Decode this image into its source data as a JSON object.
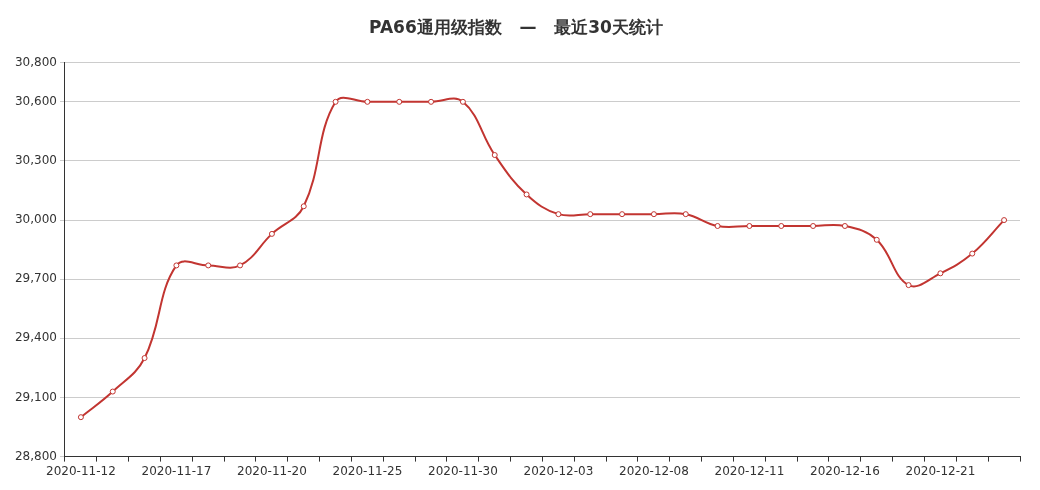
{
  "chart_data": {
    "type": "line",
    "title": "PA66通用级指数   —   最近30天统计",
    "categories": [
      "2020-11-12",
      null,
      null,
      "2020-11-17",
      null,
      null,
      "2020-11-20",
      null,
      null,
      "2020-11-25",
      null,
      null,
      "2020-11-30",
      null,
      null,
      "2020-12-03",
      null,
      null,
      "2020-12-08",
      null,
      null,
      "2020-12-11",
      null,
      null,
      "2020-12-16",
      null,
      null,
      "2020-12-21",
      null,
      null
    ],
    "series": [
      {
        "color": "#c23531",
        "values": [
          29000,
          29130,
          29300,
          29770,
          29770,
          29770,
          29930,
          30070,
          30600,
          30600,
          30600,
          30600,
          30600,
          30330,
          30130,
          30030,
          30030,
          30030,
          30030,
          30030,
          29970,
          29970,
          29970,
          29970,
          29970,
          29900,
          29670,
          29730,
          29830,
          30000
        ]
      }
    ],
    "ylim": [
      28800,
      30800
    ],
    "yticks": [
      {
        "value": 28800,
        "label": "28,800"
      },
      {
        "value": 29100,
        "label": "29,100"
      },
      {
        "value": 29400,
        "label": "29,400"
      },
      {
        "value": 29700,
        "label": "29,700"
      },
      {
        "value": 30000,
        "label": "30,000"
      },
      {
        "value": 30300,
        "label": "30,300"
      },
      {
        "value": 30600,
        "label": "30,600"
      },
      {
        "value": 30800,
        "label": "30,800"
      }
    ],
    "grid": "y",
    "legend": false,
    "marker": "circle",
    "line_style": "solid"
  }
}
